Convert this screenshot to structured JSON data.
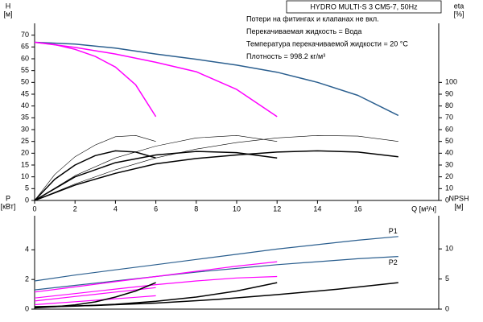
{
  "chart_data": [
    {
      "type": "line",
      "title": "HYDRO MULTI-S 3 CM5-7, 50Hz",
      "annotations": [
        "Потери на фитингах и клапанах не вкл.",
        "Перекачиваемая жидкость = Вода",
        "Температура перекачиваемой жидкости = 20 °C",
        "Плотность = 998.2 кг/м³"
      ],
      "ylabel": "H",
      "yunit": "[м]",
      "y2label": "eta",
      "y2unit": "[%]",
      "xlabel": "Q [м³/ч]",
      "xlim": [
        0,
        20
      ],
      "xticks": [
        0,
        2,
        4,
        6,
        8,
        10,
        12,
        14,
        16
      ],
      "ylim": [
        0,
        75
      ],
      "yticks": [
        0,
        5,
        10,
        15,
        20,
        25,
        30,
        35,
        40,
        45,
        50,
        55,
        60,
        65,
        70
      ],
      "y2lim": [
        0,
        150
      ],
      "y2ticks": [
        0,
        10,
        20,
        30,
        40,
        50,
        60,
        70,
        80,
        90,
        100
      ],
      "series": [
        {
          "color": "#2b5f8f",
          "width": 1.5,
          "x": [
            0,
            2,
            4,
            6,
            8,
            10,
            12,
            14,
            16,
            18
          ],
          "values": [
            67,
            66.2,
            64.5,
            62,
            59.8,
            57.3,
            54.3,
            50,
            44.5,
            36
          ]
        },
        {
          "color": "#ff00ff",
          "width": 1.5,
          "x": [
            0,
            2,
            4,
            6,
            8,
            10,
            12
          ],
          "values": [
            67,
            64.8,
            62,
            58.5,
            54.5,
            47,
            35.5
          ]
        },
        {
          "color": "#ff00ff",
          "width": 1.5,
          "x": [
            0,
            1,
            2,
            3,
            4,
            5,
            6
          ],
          "values": [
            67,
            66,
            64,
            61,
            56.5,
            49,
            35.5
          ]
        },
        {
          "color": "#000000",
          "width": 1.5,
          "axis": "y2",
          "x": [
            0,
            2,
            4,
            6,
            8,
            10,
            12,
            14,
            16,
            18
          ],
          "values": [
            0,
            13,
            23,
            31,
            35.5,
            38.5,
            41,
            42,
            41,
            37
          ]
        },
        {
          "color": "#000000",
          "width": 1.5,
          "axis": "y2",
          "x": [
            0,
            2,
            4,
            6,
            8,
            10,
            12
          ],
          "values": [
            0,
            20,
            32,
            38.5,
            41.5,
            40.5,
            36
          ]
        },
        {
          "color": "#000000",
          "width": 1.5,
          "axis": "y2",
          "x": [
            0,
            1,
            2,
            3,
            4,
            5,
            6
          ],
          "values": [
            0,
            18,
            30,
            38,
            42,
            41,
            36
          ]
        },
        {
          "color": "#000000",
          "width": 0.6,
          "axis": "y2",
          "x": [
            0,
            2,
            4,
            6,
            8,
            10,
            12,
            14,
            16,
            18
          ],
          "values": [
            0,
            14,
            26,
            36,
            43.5,
            49,
            53,
            55,
            54.5,
            50
          ]
        },
        {
          "color": "#000000",
          "width": 0.6,
          "axis": "y2",
          "x": [
            0,
            2,
            4,
            6,
            8,
            10,
            12
          ],
          "values": [
            0,
            21,
            36,
            46,
            53,
            55,
            50
          ]
        },
        {
          "color": "#000000",
          "width": 0.6,
          "axis": "y2",
          "x": [
            0,
            1,
            2,
            3,
            4,
            5,
            6
          ],
          "values": [
            0,
            22,
            37,
            47,
            54,
            55,
            50
          ]
        }
      ]
    },
    {
      "type": "line",
      "ylabel": "P",
      "yunit": "[кВт]",
      "y2label": "NPSH",
      "y2unit": "[м]",
      "xlim": [
        0,
        20
      ],
      "ylim": [
        0,
        6.3
      ],
      "yticks": [
        0,
        2,
        4
      ],
      "y2lim": [
        0,
        15.5
      ],
      "y2ticks": [
        0,
        5,
        10
      ],
      "series": [
        {
          "name": "P1",
          "color": "#2b5f8f",
          "width": 1.2,
          "x": [
            0,
            2,
            4,
            6,
            8,
            10,
            12,
            14,
            16,
            18
          ],
          "values": [
            1.9,
            2.3,
            2.65,
            3.0,
            3.35,
            3.7,
            4.05,
            4.35,
            4.65,
            4.9
          ]
        },
        {
          "name": "P2",
          "color": "#2b5f8f",
          "width": 1.2,
          "x": [
            0,
            2,
            4,
            6,
            8,
            10,
            12,
            14,
            16,
            18
          ],
          "values": [
            1.3,
            1.6,
            1.9,
            2.2,
            2.5,
            2.75,
            3.0,
            3.2,
            3.4,
            3.55
          ]
        },
        {
          "color": "#ff00ff",
          "width": 1.2,
          "x": [
            0,
            2,
            4,
            6,
            8,
            10,
            12
          ],
          "values": [
            1.15,
            1.5,
            1.85,
            2.2,
            2.55,
            2.9,
            3.2
          ]
        },
        {
          "color": "#ff00ff",
          "width": 1.2,
          "x": [
            0,
            2,
            4,
            6,
            8,
            10,
            12
          ],
          "values": [
            0.75,
            1.05,
            1.35,
            1.65,
            1.9,
            2.1,
            2.2
          ]
        },
        {
          "color": "#ff00ff",
          "width": 1.2,
          "x": [
            0,
            1,
            2,
            3,
            4,
            5,
            6
          ],
          "values": [
            0.55,
            0.7,
            0.85,
            1.0,
            1.15,
            1.3,
            1.45
          ]
        },
        {
          "color": "#ff00ff",
          "width": 1.2,
          "x": [
            0,
            1,
            2,
            3,
            4,
            5,
            6
          ],
          "values": [
            0.3,
            0.4,
            0.5,
            0.6,
            0.7,
            0.8,
            0.9
          ]
        },
        {
          "color": "#000000",
          "width": 1.5,
          "axis": "y2",
          "x": [
            0,
            3,
            6,
            9,
            12,
            15,
            18
          ],
          "values": [
            0.4,
            0.6,
            1.0,
            1.6,
            2.4,
            3.3,
            4.4
          ]
        },
        {
          "color": "#000000",
          "width": 1.5,
          "axis": "y2",
          "x": [
            0,
            2,
            4,
            6,
            8,
            10,
            12
          ],
          "values": [
            0.3,
            0.5,
            0.8,
            1.3,
            2.0,
            3.0,
            4.4
          ]
        },
        {
          "color": "#000000",
          "width": 1.5,
          "axis": "y2",
          "x": [
            0,
            1,
            2,
            3,
            4,
            5,
            6
          ],
          "values": [
            0.2,
            0.4,
            0.7,
            1.2,
            2.0,
            3.0,
            4.4
          ]
        }
      ]
    }
  ]
}
